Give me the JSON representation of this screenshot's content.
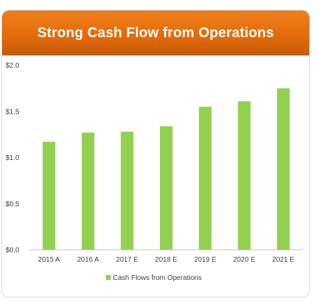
{
  "chart_data": {
    "type": "bar",
    "title": "Strong Cash Flow from Operations",
    "categories": [
      "2015 A",
      "2016 A",
      "2017 E",
      "2018 E",
      "2019 E",
      "2020 E",
      "2021 E"
    ],
    "series": [
      {
        "name": "Cash Flows from Operations",
        "values": [
          1.17,
          1.27,
          1.28,
          1.34,
          1.55,
          1.61,
          1.75
        ],
        "color": "#92d050"
      }
    ],
    "ylim": [
      0,
      2.0
    ],
    "yticks": [
      0,
      0.5,
      1.0,
      1.5,
      2.0
    ],
    "ytick_labels": [
      "$0.0",
      "$0.5",
      "$1.0",
      "$1.5",
      "$2.0"
    ],
    "xlabel": "",
    "ylabel": "",
    "grid": false,
    "legend": "bottom"
  }
}
